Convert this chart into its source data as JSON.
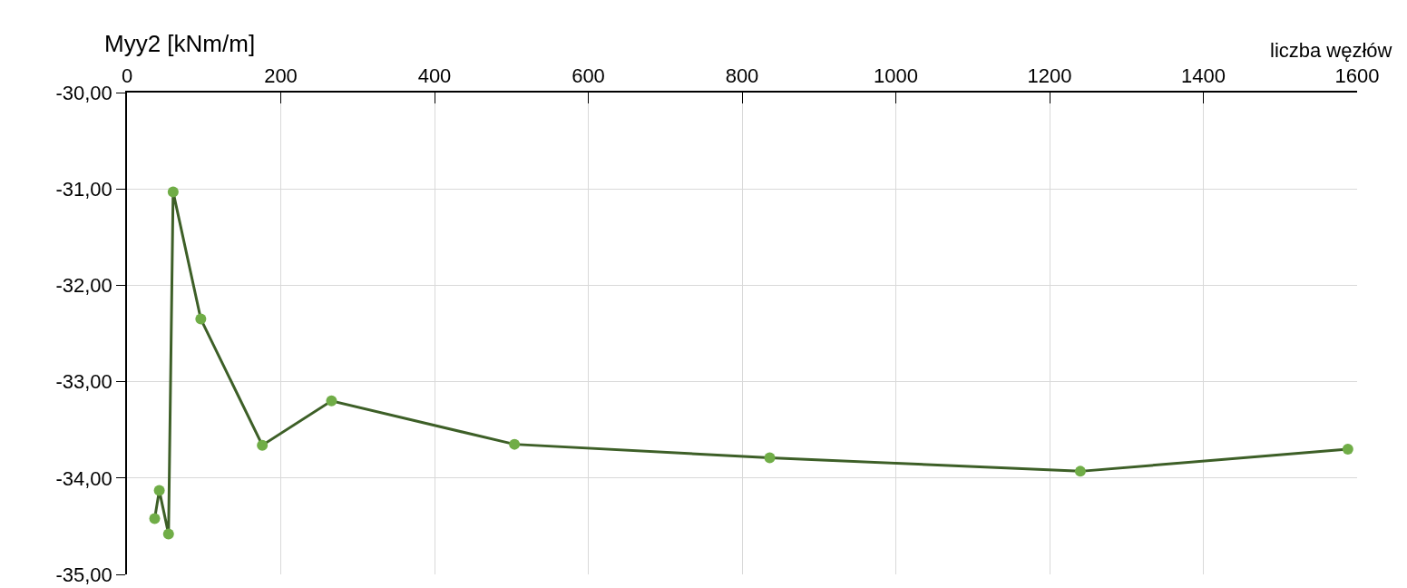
{
  "chart_data": {
    "type": "line",
    "xlabel": "liczba węzłów",
    "ylabel": "Myy2 [kNm/m]",
    "x": [
      36,
      42,
      54,
      60,
      96,
      176,
      266,
      504,
      836,
      1240,
      1588
    ],
    "series": [
      {
        "color": "#70ad47",
        "values": [
          -34.42,
          -34.13,
          -34.58,
          -31.03,
          -32.35,
          -33.66,
          -33.2,
          -33.65,
          -33.79,
          -33.93,
          -33.7
        ]
      }
    ],
    "xlim": [
      0,
      1600
    ],
    "xticks": [
      0,
      200,
      400,
      600,
      800,
      1000,
      1200,
      1400,
      1600
    ],
    "ylim": [
      -35,
      -30
    ],
    "yticks": [
      {
        "value": -35,
        "label": "-35,00"
      },
      {
        "value": -34,
        "label": "-34,00"
      },
      {
        "value": -33,
        "label": "-33,00"
      },
      {
        "value": -32,
        "label": "-32,00"
      },
      {
        "value": -31,
        "label": "-31,00"
      },
      {
        "value": -30,
        "label": "-30,00"
      }
    ],
    "grid": true,
    "marker": "circle",
    "line_style": "solid"
  }
}
